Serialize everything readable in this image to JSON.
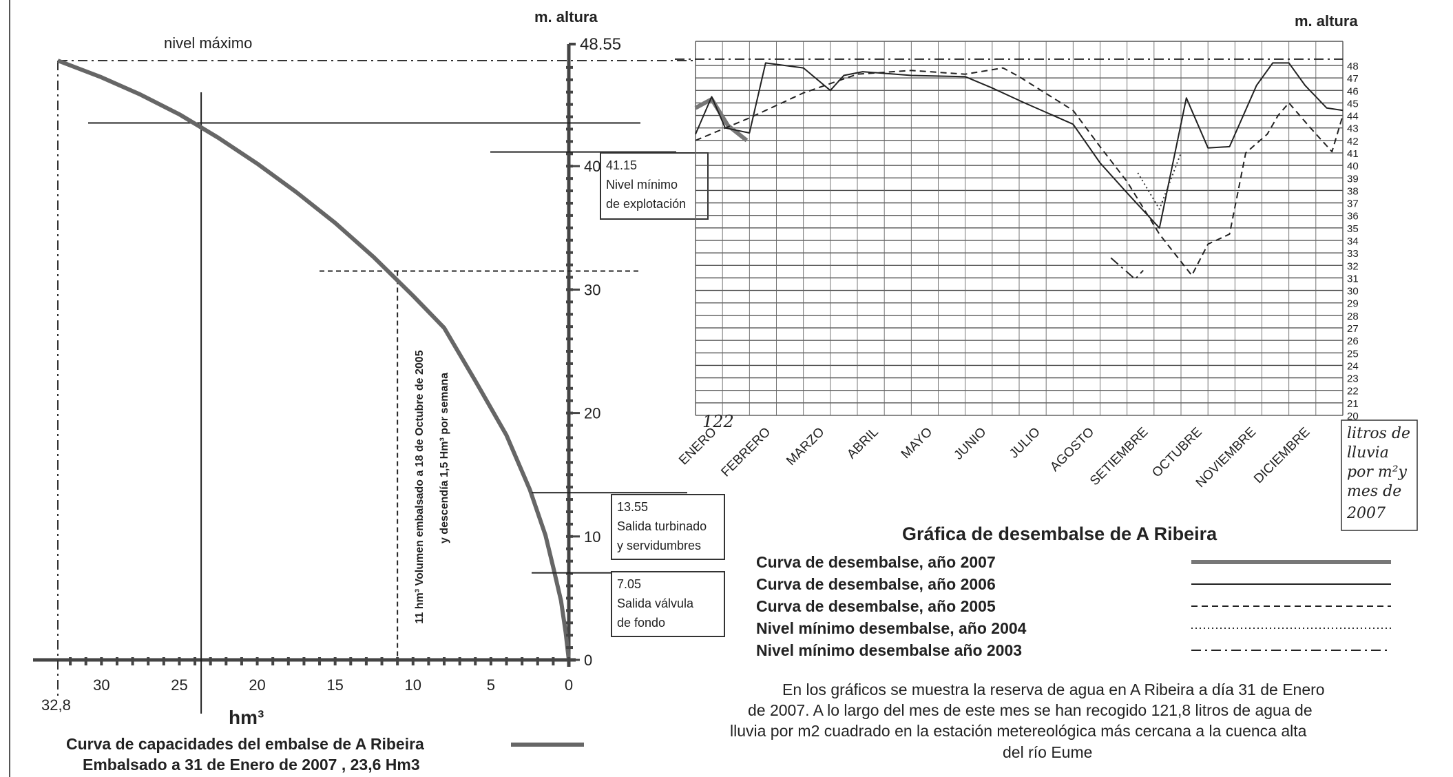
{
  "chart_data": [
    {
      "type": "line",
      "title": "Curva de capacidades del embalse de A Ribeira",
      "subtitle": "Embalsado a 31 de Enero de 2007 , 23,6 Hm3",
      "xlabel": "hm³",
      "ylabel": "m. altura",
      "top_value_label": "48.55",
      "top_label": "nivel máximo",
      "xlim": [
        32.8,
        0
      ],
      "ylim": [
        0,
        48.55
      ],
      "x_ticks": [
        30,
        25,
        20,
        15,
        10,
        5,
        0
      ],
      "x_extra_label": "32,8",
      "y_ticks": [
        0,
        10,
        20,
        30,
        40
      ],
      "capacity_curve": {
        "x": [
          32.8,
          30,
          27.5,
          25,
          22.5,
          20,
          17.5,
          15,
          12.5,
          10,
          8,
          6,
          4,
          2.5,
          1.5,
          1,
          0.5,
          0.2,
          0
        ],
        "y": [
          48.55,
          47.2,
          45.8,
          44.2,
          42.3,
          40.2,
          37.9,
          35.4,
          32.6,
          29.5,
          26.9,
          22.6,
          18.2,
          13.8,
          10.1,
          7.5,
          4.8,
          2.2,
          0
        ]
      },
      "reference_hline_y": 43.5,
      "current_volume_x": 23.6,
      "dashed_marker": {
        "x": 11,
        "y": 31.5
      },
      "vertical_note": [
        "11 hm³ Volumen embalsado a 18 de Octubre de 2005",
        "y descendía 1,5 Hm³ por semana"
      ],
      "annotations": [
        {
          "y": 41.15,
          "lines": [
            "41.15",
            "Nivel mínimo",
            "de explotación"
          ]
        },
        {
          "y": 13.55,
          "lines": [
            "13.55",
            "Salida turbinado",
            "y servidumbres"
          ]
        },
        {
          "y": 7.05,
          "lines": [
            "7.05",
            "Salida válvula",
            "de fondo"
          ]
        }
      ],
      "legend_swatch": "#666666"
    },
    {
      "type": "line",
      "title": "Gráfica de desembalse de A Ribeira",
      "ylabel": "m. altura",
      "ylim": [
        20,
        48
      ],
      "y_ticks": [
        48,
        47,
        46,
        45,
        44,
        43,
        42,
        41,
        40,
        39,
        38,
        37,
        36,
        35,
        34,
        33,
        32,
        31,
        30,
        29,
        28,
        27,
        26,
        25,
        24,
        23,
        22,
        21,
        20
      ],
      "categories": [
        "ENERO",
        "FEBRERO",
        "MARZO",
        "ABRIL",
        "MAYO",
        "JUNIO",
        "JULIO",
        "AGOSTO",
        "SETIEMBRE",
        "OCTUBRE",
        "NOVIEMBRE",
        "DICIEMBRE"
      ],
      "rain_value": "122",
      "rain_note": [
        "litros de",
        "lluvia",
        "por m²y",
        "mes de",
        "2007"
      ],
      "max_level_y": 48.5,
      "series": [
        {
          "name": "Curva de desembalse, año 2007",
          "style": "thick",
          "x": [
            0,
            0.3,
            0.6,
            0.95
          ],
          "y": [
            44.6,
            45.3,
            43.2,
            42.0
          ]
        },
        {
          "name": "Curva de desembalse, año 2006",
          "style": "solid",
          "x": [
            0,
            0.3,
            0.55,
            1.0,
            1.3,
            2.0,
            2.5,
            2.75,
            3.1,
            4.0,
            5.0,
            5.5,
            6.1,
            7.0,
            7.5,
            8.0,
            8.6,
            9.1,
            9.5,
            9.9,
            10.4,
            10.7,
            11.0,
            11.3,
            11.7,
            12.0
          ],
          "y": [
            42.5,
            45.5,
            43.0,
            42.6,
            48.2,
            47.8,
            46.0,
            47.2,
            47.5,
            47.2,
            47.1,
            46.2,
            45.0,
            43.3,
            40.2,
            37.8,
            35.0,
            45.4,
            41.4,
            41.5,
            46.4,
            48.2,
            48.2,
            46.4,
            44.6,
            44.4
          ]
        },
        {
          "name": "Curva de desembalse, año 2005",
          "style": "dashed",
          "x": [
            0,
            1.0,
            2.0,
            3.0,
            4.0,
            5.0,
            5.7,
            6.0,
            7.0,
            7.5,
            8.0,
            8.6,
            9.2,
            9.5,
            9.9,
            10.2,
            10.6,
            10.8,
            11.0,
            11.4,
            11.8,
            12.0
          ],
          "y": [
            42.0,
            43.8,
            45.8,
            47.3,
            47.6,
            47.3,
            47.8,
            47.1,
            44.4,
            41.5,
            38.7,
            34.5,
            31.2,
            33.7,
            34.5,
            41.0,
            42.5,
            44.0,
            45.0,
            43.0,
            41.1,
            44.0
          ]
        },
        {
          "name": "Nivel mínimo desembalse, año 2004",
          "style": "dotted",
          "x": [
            8.2,
            8.6,
            9.0
          ],
          "y": [
            39.4,
            36.5,
            41.0
          ]
        },
        {
          "name": "Nivel mínimo desembalse año 2003",
          "style": "dashdot",
          "x": [
            7.7,
            8.15,
            8.3
          ],
          "y": [
            32.6,
            30.9,
            31.6
          ]
        }
      ]
    }
  ],
  "description_text": "En los gráficos se muestra la reserva de agua en A Ribeira a día 31 de Enero de 2007. A lo largo del mes de este mes se han recogido 121,8 litros de agua de lluvia por m2 cuadrado en la estación metereológica más cercana a la cuenca alta del río Eume",
  "description_lines": [
    "En los gráficos se muestra la reserva de agua en A Ribeira a día 31 de Enero",
    "de 2007. A lo largo del mes de este mes se han recogido 121,8 litros de agua de",
    "lluvia por m2 cuadrado en la estación metereológica más cercana a la cuenca alta",
    "del río Eume"
  ]
}
